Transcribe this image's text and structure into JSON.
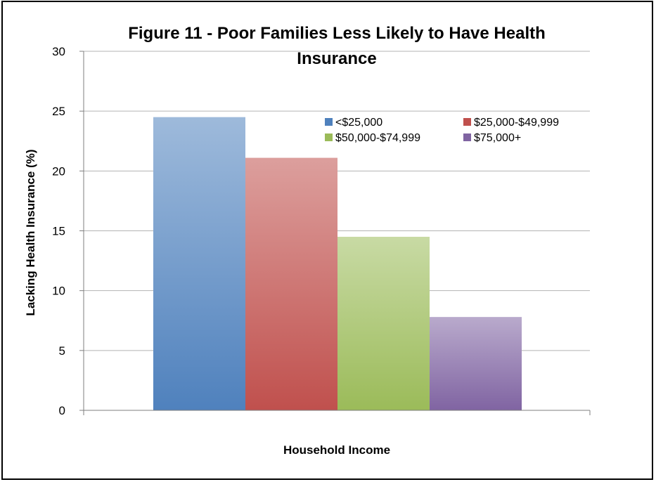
{
  "chart_data": {
    "type": "bar",
    "title_lines": [
      "Figure 11 - Poor Families Less Likely to Have Health",
      "Insurance"
    ],
    "xlabel": "Household Income",
    "ylabel": "Lacking Health Insurance (%)",
    "ylim": [
      0,
      30
    ],
    "yticks": [
      "0",
      "5",
      "10",
      "15",
      "20",
      "25",
      "30"
    ],
    "grid": true,
    "legend_position": "top-right",
    "series": [
      {
        "name": "<$25,000",
        "value": 24.5,
        "color": "#4f81bd"
      },
      {
        "name": "$25,000-$49,999",
        "value": 21.1,
        "color": "#c0504d"
      },
      {
        "name": "$50,000-$74,999",
        "value": 14.5,
        "color": "#9bbb59"
      },
      {
        "name": "$75,000+",
        "value": 7.8,
        "color": "#8064a2"
      }
    ]
  }
}
